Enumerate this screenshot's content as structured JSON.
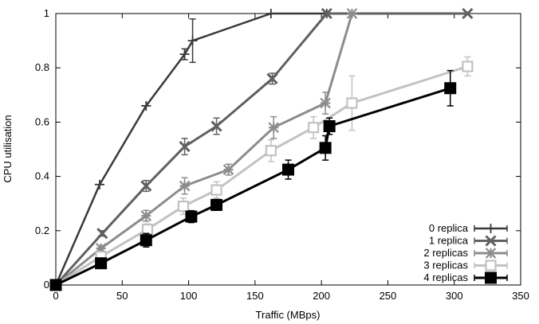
{
  "chart_data": {
    "type": "line",
    "xlabel": "Traffic (MBps)",
    "ylabel": "CPU utilisation",
    "xlim": [
      0,
      350
    ],
    "ylim": [
      0,
      1
    ],
    "xticks": [
      0,
      50,
      100,
      150,
      200,
      250,
      300,
      350
    ],
    "yticks": [
      0,
      0.2,
      0.4,
      0.6,
      0.8,
      1
    ],
    "ytick_labels": [
      "0",
      "0.2",
      "0.4",
      "0.6",
      "0.8",
      "1"
    ],
    "grid": false,
    "legend_position": "bottom-right",
    "series": [
      {
        "name": "0 replica",
        "color": "#3a3a3a",
        "marker": "plus",
        "points": [
          {
            "x": 0,
            "y": 0
          },
          {
            "x": 33,
            "y": 0.37
          },
          {
            "x": 68,
            "y": 0.66
          },
          {
            "x": 97,
            "y": 0.85,
            "err": 0.02
          },
          {
            "x": 103,
            "y": 0.9,
            "err": 0.08
          },
          {
            "x": 162,
            "y": 1.0
          },
          {
            "x": 204,
            "y": 1.0
          }
        ]
      },
      {
        "name": "1 replica",
        "color": "#606060",
        "marker": "x",
        "points": [
          {
            "x": 0,
            "y": 0
          },
          {
            "x": 35,
            "y": 0.19,
            "err": 0.01
          },
          {
            "x": 68,
            "y": 0.365,
            "err": 0.02
          },
          {
            "x": 97,
            "y": 0.51,
            "err": 0.03
          },
          {
            "x": 121,
            "y": 0.585,
            "err": 0.03
          },
          {
            "x": 163,
            "y": 0.76,
            "err": 0.02
          },
          {
            "x": 204,
            "y": 1.0
          },
          {
            "x": 310,
            "y": 1.0
          }
        ]
      },
      {
        "name": "2 replicas",
        "color": "#8c8c8c",
        "marker": "star",
        "points": [
          {
            "x": 0,
            "y": 0
          },
          {
            "x": 34,
            "y": 0.135,
            "err": 0.01
          },
          {
            "x": 68,
            "y": 0.255,
            "err": 0.02
          },
          {
            "x": 97,
            "y": 0.365,
            "err": 0.03
          },
          {
            "x": 130,
            "y": 0.425,
            "err": 0.02
          },
          {
            "x": 164,
            "y": 0.58,
            "err": 0.04
          },
          {
            "x": 203,
            "y": 0.67,
            "err": 0.04
          },
          {
            "x": 223,
            "y": 1.0
          }
        ]
      },
      {
        "name": "3 replicas",
        "color": "#c2c2c2",
        "marker": "square-open",
        "points": [
          {
            "x": 0,
            "y": 0
          },
          {
            "x": 34,
            "y": 0.105,
            "err": 0.01
          },
          {
            "x": 69,
            "y": 0.205,
            "err": 0.02
          },
          {
            "x": 96,
            "y": 0.29,
            "err": 0.03
          },
          {
            "x": 121,
            "y": 0.35,
            "err": 0.03
          },
          {
            "x": 162,
            "y": 0.495,
            "err": 0.04
          },
          {
            "x": 194,
            "y": 0.58,
            "err": 0.04
          },
          {
            "x": 223,
            "y": 0.67,
            "err": 0.1
          },
          {
            "x": 310,
            "y": 0.805,
            "err": 0.035
          }
        ]
      },
      {
        "name": "4 replicas",
        "color": "#000000",
        "marker": "square-filled",
        "points": [
          {
            "x": 0,
            "y": 0
          },
          {
            "x": 34,
            "y": 0.08
          },
          {
            "x": 68,
            "y": 0.165,
            "err": 0.025
          },
          {
            "x": 102,
            "y": 0.252,
            "err": 0.022
          },
          {
            "x": 121,
            "y": 0.295,
            "err": 0.02
          },
          {
            "x": 175,
            "y": 0.425,
            "err": 0.035
          },
          {
            "x": 203,
            "y": 0.505,
            "err": 0.045
          },
          {
            "x": 206,
            "y": 0.585,
            "err": 0.03
          },
          {
            "x": 297,
            "y": 0.725,
            "err": 0.065
          }
        ]
      }
    ]
  }
}
